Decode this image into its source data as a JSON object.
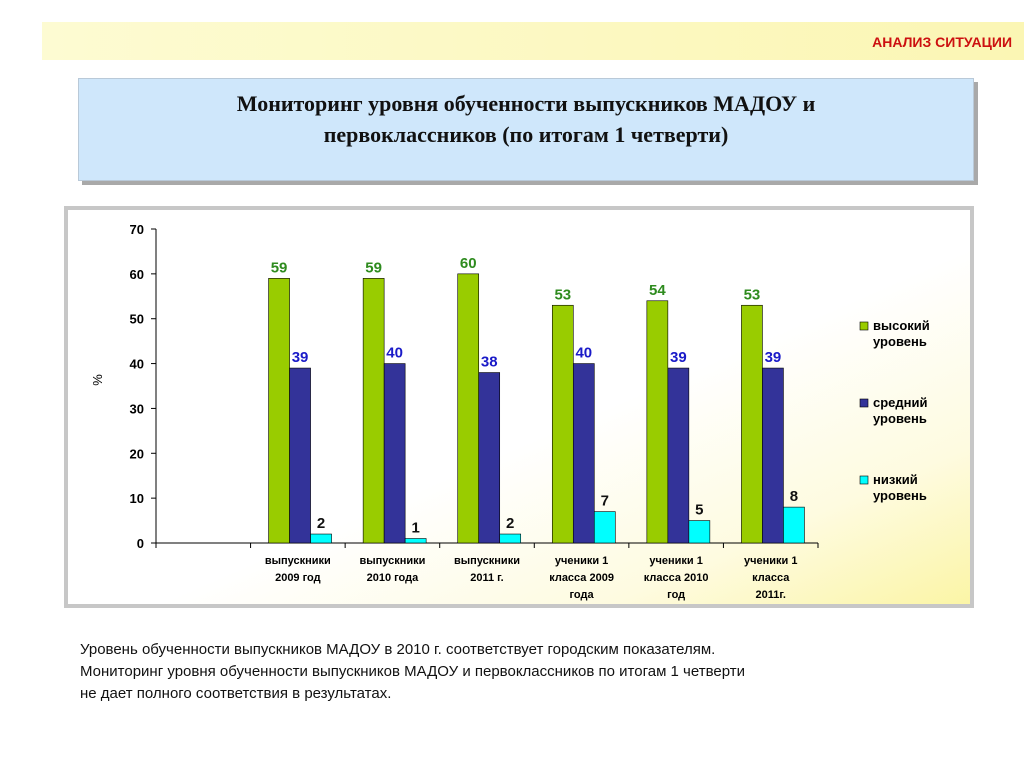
{
  "header": {
    "section_label": "АНАЛИЗ СИТУАЦИИ"
  },
  "title": {
    "text": "Мониторинг уровня обученности выпускников МАДОУ и\nпервоклассников (по  итогам 1 четверти)"
  },
  "chart_data": {
    "type": "bar",
    "ylabel": "%",
    "ylim": [
      0,
      70
    ],
    "yticks": [
      0,
      10,
      20,
      30,
      40,
      50,
      60,
      70
    ],
    "grid": false,
    "legend_position": "right",
    "categories": [
      "",
      "выпускники 2009 год",
      "выпускники 2010 года",
      "выпускники 2011 г.",
      "ученики 1 класса 2009 года",
      "ученики 1 класса 2010 год",
      "ученики 1 класса 2011г."
    ],
    "category_lines": [
      [],
      [
        "выпускники",
        "2009 год"
      ],
      [
        "выпускники",
        "2010 года"
      ],
      [
        "выпускники",
        "2011 г."
      ],
      [
        "ученики 1",
        "класса 2009",
        "года"
      ],
      [
        "ученики 1",
        "класса 2010",
        "год"
      ],
      [
        "ученики 1",
        "класса",
        "2011г."
      ]
    ],
    "series": [
      {
        "name": "высокий уровень",
        "legend_lines": [
          "высокий",
          "уровень"
        ],
        "color": "#99cc00",
        "label_color": "#2e8b1e",
        "values": [
          null,
          59,
          59,
          60,
          53,
          54,
          53
        ]
      },
      {
        "name": "средний уровень",
        "legend_lines": [
          "средний",
          "уровень"
        ],
        "color": "#333399",
        "label_color": "#1a1ac8",
        "values": [
          null,
          39,
          40,
          38,
          40,
          39,
          39
        ]
      },
      {
        "name": "низкий уровень",
        "legend_lines": [
          "низкий",
          "уровень"
        ],
        "color": "#00ffff",
        "label_color": "#111111",
        "values": [
          null,
          2,
          1,
          2,
          7,
          5,
          8
        ]
      }
    ]
  },
  "footnote": {
    "line1": "Уровень обученности выпускников МАДОУ в 2010 г. соответствует городским показателям.",
    "line2": "Мониторинг уровня обученности выпускников МАДОУ  и первоклассников по  итогам 1 четверти",
    "line3": "не дает полного соответствия в результатах."
  }
}
